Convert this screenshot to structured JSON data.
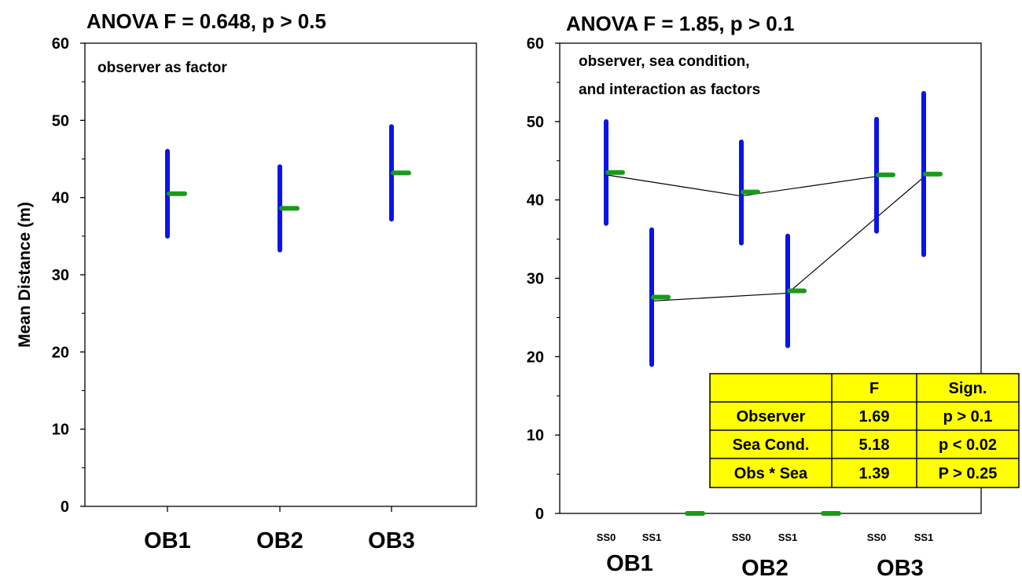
{
  "chart_data": [
    {
      "type": "scatter",
      "title": "ANOVA F = 0.648, p > 0.5",
      "annotation": [
        "observer as factor"
      ],
      "xlabel": "",
      "ylabel": "Mean Distance (m)",
      "ylim": [
        0,
        60
      ],
      "yticks": [
        "0",
        "10",
        "20",
        "30",
        "40",
        "50",
        "60"
      ],
      "grid": false,
      "categories": [
        "OB1",
        "OB2",
        "OB3"
      ],
      "points": [
        {
          "category": "OB1",
          "mean": 40.5,
          "low": 35,
          "high": 46
        },
        {
          "category": "OB2",
          "mean": 38.6,
          "low": 33.2,
          "high": 44
        },
        {
          "category": "OB3",
          "mean": 43.2,
          "low": 37.2,
          "high": 49.2
        }
      ],
      "colors": {
        "range_bar": "#0a14e6",
        "mean_tick": "#1a9a1a"
      }
    },
    {
      "type": "scatter",
      "title": "ANOVA F = 1.85, p > 0.1",
      "annotation": [
        "observer, sea condition,",
        "and interaction as factors"
      ],
      "xlabel": "",
      "ylabel": "",
      "ylim": [
        0,
        60
      ],
      "yticks": [
        "0",
        "10",
        "20",
        "30",
        "40",
        "50",
        "60"
      ],
      "grid": false,
      "group_labels": [
        "OB1",
        "OB2",
        "OB3"
      ],
      "sub_labels": [
        "SS0",
        "SS1"
      ],
      "points": [
        {
          "group": "OB1",
          "sub": "SS0",
          "mean": 43.5,
          "low": 37,
          "high": 50
        },
        {
          "group": "OB1",
          "sub": "SS1",
          "mean": 27.6,
          "low": 19,
          "high": 36.2
        },
        {
          "group": "OB2",
          "sub": "SS0",
          "mean": 41,
          "low": 34.5,
          "high": 47.4
        },
        {
          "group": "OB2",
          "sub": "SS1",
          "mean": 28.4,
          "low": 21.4,
          "high": 35.4
        },
        {
          "group": "OB3",
          "sub": "SS0",
          "mean": 43.2,
          "low": 36,
          "high": 50.3
        },
        {
          "group": "OB3",
          "sub": "SS1",
          "mean": 43.3,
          "low": 33,
          "high": 53.6
        }
      ],
      "baseline_means": [
        {
          "between": [
            "OB1",
            "OB2"
          ],
          "value": 0
        },
        {
          "between": [
            "OB2",
            "OB3"
          ],
          "value": 0
        }
      ],
      "interaction_lines": [
        {
          "sub": "SS0",
          "values": [
            43.2,
            40.5,
            43
          ]
        },
        {
          "sub": "SS1",
          "values": [
            27.1,
            28.1,
            42.9
          ]
        }
      ],
      "table": {
        "headers": [
          "",
          "F",
          "Sign."
        ],
        "rows": [
          [
            "Observer",
            "1.69",
            "p > 0.1"
          ],
          [
            "Sea Cond.",
            "5.18",
            "p < 0.02"
          ],
          [
            "Obs * Sea",
            "1.39",
            "P > 0.25"
          ]
        ],
        "background": "#ffff00"
      },
      "colors": {
        "range_bar": "#0a14e6",
        "mean_tick": "#1a9a1a",
        "line": "#000000"
      }
    }
  ]
}
